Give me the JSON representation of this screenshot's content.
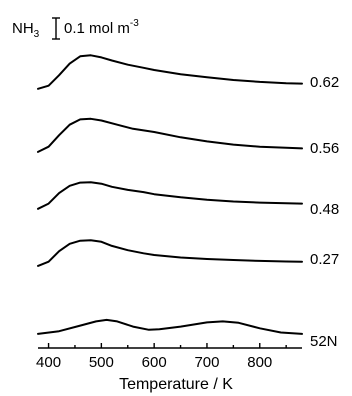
{
  "chart_data": {
    "type": "line",
    "xlabel": "Temperature / K",
    "ylabel": "",
    "xlim": [
      380,
      880
    ],
    "x_ticks": [
      400,
      500,
      600,
      700,
      800
    ],
    "y_ticks_shown": false,
    "grid": false,
    "scale_bar": {
      "species_base": "NH",
      "species_sub": "3",
      "value_text": "0.1 mol m",
      "exponent": "-3"
    },
    "series": [
      {
        "name": "0.62",
        "points": [
          [
            380,
            0.015
          ],
          [
            400,
            0.03
          ],
          [
            420,
            0.08
          ],
          [
            440,
            0.135
          ],
          [
            460,
            0.17
          ],
          [
            480,
            0.175
          ],
          [
            500,
            0.165
          ],
          [
            520,
            0.15
          ],
          [
            550,
            0.13
          ],
          [
            580,
            0.115
          ],
          [
            600,
            0.105
          ],
          [
            650,
            0.085
          ],
          [
            700,
            0.07
          ],
          [
            750,
            0.057
          ],
          [
            800,
            0.048
          ],
          [
            850,
            0.042
          ],
          [
            880,
            0.04
          ]
        ]
      },
      {
        "name": "0.56",
        "points": [
          [
            380,
            0.005
          ],
          [
            400,
            0.03
          ],
          [
            420,
            0.085
          ],
          [
            440,
            0.135
          ],
          [
            460,
            0.16
          ],
          [
            480,
            0.163
          ],
          [
            500,
            0.155
          ],
          [
            530,
            0.135
          ],
          [
            560,
            0.115
          ],
          [
            600,
            0.1
          ],
          [
            650,
            0.075
          ],
          [
            700,
            0.055
          ],
          [
            750,
            0.04
          ],
          [
            800,
            0.03
          ],
          [
            850,
            0.025
          ],
          [
            880,
            0.022
          ]
        ]
      },
      {
        "name": "0.48",
        "points": [
          [
            380,
            0.015
          ],
          [
            400,
            0.04
          ],
          [
            420,
            0.09
          ],
          [
            440,
            0.125
          ],
          [
            460,
            0.14
          ],
          [
            480,
            0.142
          ],
          [
            500,
            0.135
          ],
          [
            520,
            0.12
          ],
          [
            550,
            0.105
          ],
          [
            580,
            0.095
          ],
          [
            600,
            0.085
          ],
          [
            650,
            0.07
          ],
          [
            700,
            0.058
          ],
          [
            750,
            0.05
          ],
          [
            800,
            0.045
          ],
          [
            850,
            0.042
          ],
          [
            880,
            0.04
          ]
        ]
      },
      {
        "name": "0.27",
        "points": [
          [
            380,
            0.01
          ],
          [
            400,
            0.03
          ],
          [
            420,
            0.08
          ],
          [
            440,
            0.115
          ],
          [
            460,
            0.13
          ],
          [
            480,
            0.132
          ],
          [
            500,
            0.125
          ],
          [
            520,
            0.105
          ],
          [
            550,
            0.085
          ],
          [
            580,
            0.07
          ],
          [
            600,
            0.062
          ],
          [
            650,
            0.05
          ],
          [
            700,
            0.043
          ],
          [
            750,
            0.038
          ],
          [
            800,
            0.034
          ],
          [
            850,
            0.031
          ],
          [
            880,
            0.03
          ]
        ]
      },
      {
        "name": "52N",
        "points": [
          [
            380,
            0.005
          ],
          [
            420,
            0.018
          ],
          [
            460,
            0.045
          ],
          [
            490,
            0.065
          ],
          [
            510,
            0.072
          ],
          [
            530,
            0.065
          ],
          [
            560,
            0.04
          ],
          [
            590,
            0.025
          ],
          [
            610,
            0.027
          ],
          [
            650,
            0.04
          ],
          [
            700,
            0.06
          ],
          [
            730,
            0.065
          ],
          [
            760,
            0.058
          ],
          [
            800,
            0.032
          ],
          [
            840,
            0.012
          ],
          [
            880,
            0.005
          ]
        ]
      }
    ]
  }
}
